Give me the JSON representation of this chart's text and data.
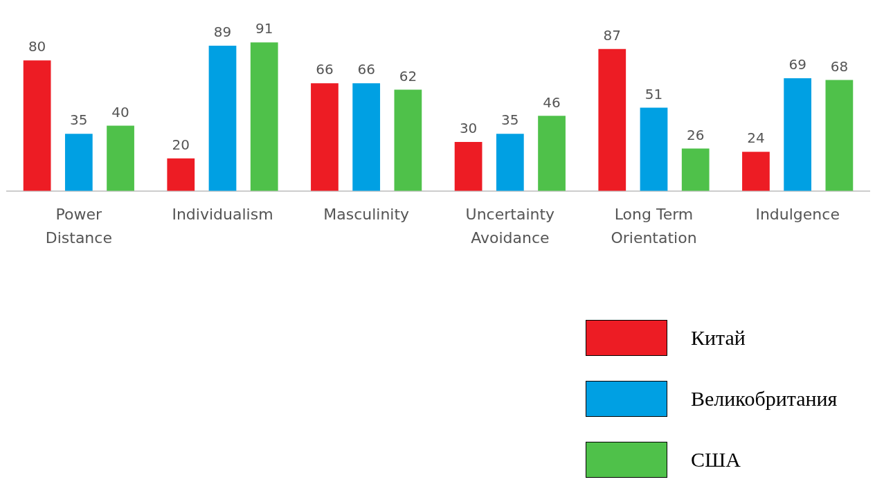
{
  "chart_data": {
    "type": "bar",
    "categories": [
      "Power Distance",
      "Individualism",
      "Masculinity",
      "Uncertainty Avoidance",
      "Long Term Orientation",
      "Indulgence"
    ],
    "series": [
      {
        "name": "Китай",
        "color": "#ed1c24",
        "values": [
          80,
          20,
          66,
          30,
          87,
          24
        ]
      },
      {
        "name": "Великобритания",
        "color": "#00a0e3",
        "values": [
          35,
          89,
          66,
          35,
          51,
          69
        ]
      },
      {
        "name": "США",
        "color": "#4fc14a",
        "values": [
          40,
          91,
          62,
          46,
          26,
          68
        ]
      }
    ],
    "tick_labels": "x",
    "data_labels": true,
    "grid": false,
    "legend": "bottom right"
  }
}
